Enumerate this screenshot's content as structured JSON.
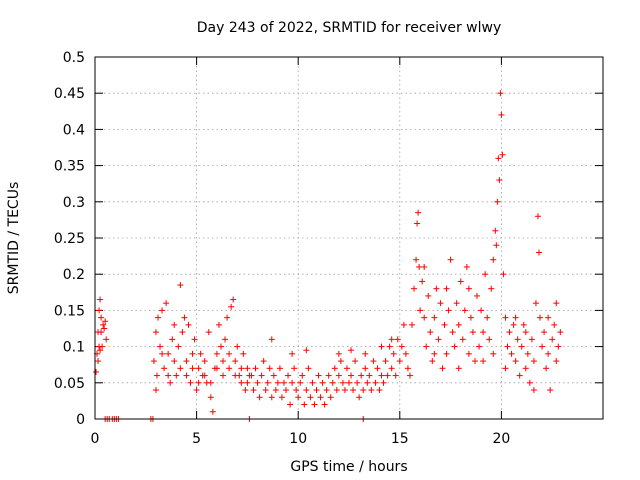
{
  "chart_data": {
    "type": "scatter",
    "title": "Day 243 of 2022, SRMTID for receiver wlwy",
    "xlabel": "GPS time / hours",
    "ylabel": "SRMTID / TECUs",
    "xlim": [
      0,
      25
    ],
    "ylim": [
      0,
      0.5
    ],
    "xticks": [
      0,
      5,
      10,
      15,
      20
    ],
    "yticks": [
      0,
      0.05,
      0.1,
      0.15,
      0.2,
      0.25,
      0.3,
      0.35,
      0.4,
      0.45,
      0.5
    ],
    "ytick_labels": [
      "0",
      "0.05",
      "0.1",
      "0.15",
      "0.2",
      "0.25",
      "0.3",
      "0.35",
      "0.4",
      "0.45",
      "0.5"
    ],
    "grid": true,
    "marker": "+",
    "color": "#ff0000",
    "series": [
      {
        "name": "SRMTID",
        "points": [
          [
            0.05,
            0.065
          ],
          [
            0.1,
            0.09
          ],
          [
            0.15,
            0.12
          ],
          [
            0.2,
            0.15
          ],
          [
            0.25,
            0.165
          ],
          [
            0.3,
            0.14
          ],
          [
            0.35,
            0.1
          ],
          [
            0.4,
            0.13
          ],
          [
            0.45,
            0.125
          ],
          [
            0.5,
            0.135
          ],
          [
            0.55,
            0.11
          ],
          [
            0.15,
            0.08
          ],
          [
            0.2,
            0.1
          ],
          [
            0.25,
            0.095
          ],
          [
            0.3,
            0.12
          ],
          [
            0.5,
            0.0
          ],
          [
            0.6,
            0.0
          ],
          [
            0.7,
            0.0
          ],
          [
            0.85,
            0.0
          ],
          [
            0.95,
            0.0
          ],
          [
            1.05,
            0.0
          ],
          [
            1.15,
            0.0
          ],
          [
            2.75,
            0.0
          ],
          [
            2.85,
            0.0
          ],
          [
            7.6,
            0.0
          ],
          [
            13.2,
            0.0
          ],
          [
            2.9,
            0.08
          ],
          [
            3.0,
            0.12
          ],
          [
            3.05,
            0.06
          ],
          [
            3.1,
            0.14
          ],
          [
            3.2,
            0.1
          ],
          [
            3.3,
            0.15
          ],
          [
            3.4,
            0.07
          ],
          [
            3.5,
            0.16
          ],
          [
            3.6,
            0.09
          ],
          [
            3.7,
            0.05
          ],
          [
            3.8,
            0.11
          ],
          [
            3.9,
            0.13
          ],
          [
            4.0,
            0.06
          ],
          [
            4.1,
            0.1
          ],
          [
            4.2,
            0.185
          ],
          [
            4.3,
            0.12
          ],
          [
            4.4,
            0.14
          ],
          [
            4.5,
            0.08
          ],
          [
            4.6,
            0.13
          ],
          [
            4.7,
            0.05
          ],
          [
            4.8,
            0.09
          ],
          [
            4.9,
            0.11
          ],
          [
            5.0,
            0.04
          ],
          [
            5.1,
            0.07
          ],
          [
            5.2,
            0.09
          ],
          [
            5.3,
            0.06
          ],
          [
            5.4,
            0.08
          ],
          [
            5.5,
            0.05
          ],
          [
            5.6,
            0.12
          ],
          [
            5.7,
            0.03
          ],
          [
            5.8,
            0.01
          ],
          [
            5.9,
            0.07
          ],
          [
            6.0,
            0.09
          ],
          [
            6.1,
            0.13
          ],
          [
            6.2,
            0.1
          ],
          [
            6.3,
            0.06
          ],
          [
            6.4,
            0.11
          ],
          [
            6.5,
            0.14
          ],
          [
            6.6,
            0.09
          ],
          [
            6.7,
            0.155
          ],
          [
            6.8,
            0.165
          ],
          [
            6.9,
            0.08
          ],
          [
            7.0,
            0.1
          ],
          [
            7.1,
            0.06
          ],
          [
            7.2,
            0.05
          ],
          [
            7.3,
            0.09
          ],
          [
            7.4,
            0.04
          ],
          [
            7.5,
            0.07
          ],
          [
            7.6,
            0.06
          ],
          [
            3.0,
            0.04
          ],
          [
            3.3,
            0.09
          ],
          [
            3.6,
            0.06
          ],
          [
            3.9,
            0.08
          ],
          [
            4.2,
            0.07
          ],
          [
            4.5,
            0.06
          ],
          [
            4.8,
            0.07
          ],
          [
            5.1,
            0.05
          ],
          [
            5.4,
            0.06
          ],
          [
            5.7,
            0.05
          ],
          [
            6.0,
            0.07
          ],
          [
            6.3,
            0.08
          ],
          [
            6.6,
            0.07
          ],
          [
            6.9,
            0.06
          ],
          [
            7.2,
            0.07
          ],
          [
            7.5,
            0.05
          ],
          [
            7.7,
            0.06
          ],
          [
            7.8,
            0.04
          ],
          [
            7.9,
            0.07
          ],
          [
            8.0,
            0.05
          ],
          [
            8.1,
            0.03
          ],
          [
            8.2,
            0.06
          ],
          [
            8.3,
            0.08
          ],
          [
            8.4,
            0.04
          ],
          [
            8.5,
            0.05
          ],
          [
            8.6,
            0.07
          ],
          [
            8.7,
            0.03
          ],
          [
            8.8,
            0.06
          ],
          [
            8.9,
            0.04
          ],
          [
            9.0,
            0.05
          ],
          [
            9.1,
            0.07
          ],
          [
            9.2,
            0.03
          ],
          [
            9.3,
            0.05
          ],
          [
            9.4,
            0.04
          ],
          [
            9.5,
            0.06
          ],
          [
            9.6,
            0.02
          ],
          [
            9.7,
            0.05
          ],
          [
            9.8,
            0.07
          ],
          [
            9.9,
            0.04
          ],
          [
            10.0,
            0.03
          ],
          [
            10.1,
            0.05
          ],
          [
            10.2,
            0.06
          ],
          [
            10.3,
            0.02
          ],
          [
            10.4,
            0.04
          ],
          [
            10.5,
            0.07
          ],
          [
            10.6,
            0.03
          ],
          [
            10.7,
            0.05
          ],
          [
            10.8,
            0.02
          ],
          [
            10.9,
            0.04
          ],
          [
            11.0,
            0.06
          ],
          [
            11.1,
            0.03
          ],
          [
            11.2,
            0.05
          ],
          [
            11.3,
            0.02
          ],
          [
            11.4,
            0.04
          ],
          [
            11.5,
            0.06
          ],
          [
            11.6,
            0.03
          ],
          [
            11.7,
            0.05
          ],
          [
            11.8,
            0.07
          ],
          [
            11.9,
            0.04
          ],
          [
            12.0,
            0.06
          ],
          [
            12.1,
            0.08
          ],
          [
            12.2,
            0.05
          ],
          [
            12.3,
            0.04
          ],
          [
            12.4,
            0.07
          ],
          [
            12.5,
            0.05
          ],
          [
            12.6,
            0.06
          ],
          [
            12.7,
            0.04
          ],
          [
            12.8,
            0.08
          ],
          [
            12.9,
            0.05
          ],
          [
            13.0,
            0.03
          ],
          [
            13.1,
            0.06
          ],
          [
            13.2,
            0.04
          ],
          [
            13.3,
            0.07
          ],
          [
            13.4,
            0.05
          ],
          [
            13.5,
            0.06
          ],
          [
            13.6,
            0.04
          ],
          [
            13.7,
            0.08
          ],
          [
            13.8,
            0.05
          ],
          [
            13.9,
            0.07
          ],
          [
            14.0,
            0.04
          ],
          [
            14.1,
            0.06
          ],
          [
            14.2,
            0.05
          ],
          [
            14.3,
            0.08
          ],
          [
            14.4,
            0.06
          ],
          [
            14.5,
            0.1
          ],
          [
            14.6,
            0.07
          ],
          [
            14.7,
            0.09
          ],
          [
            14.8,
            0.06
          ],
          [
            14.9,
            0.11
          ],
          [
            15.0,
            0.08
          ],
          [
            15.1,
            0.1
          ],
          [
            15.2,
            0.13
          ],
          [
            15.3,
            0.09
          ],
          [
            15.4,
            0.07
          ],
          [
            15.5,
            0.06
          ],
          [
            8.7,
            0.11
          ],
          [
            9.7,
            0.09
          ],
          [
            10.4,
            0.095
          ],
          [
            12.0,
            0.09
          ],
          [
            12.6,
            0.095
          ],
          [
            13.3,
            0.09
          ],
          [
            14.1,
            0.1
          ],
          [
            14.6,
            0.11
          ],
          [
            15.6,
            0.13
          ],
          [
            15.7,
            0.18
          ],
          [
            15.8,
            0.22
          ],
          [
            15.85,
            0.27
          ],
          [
            15.9,
            0.285
          ],
          [
            15.95,
            0.21
          ],
          [
            16.0,
            0.15
          ],
          [
            16.1,
            0.19
          ],
          [
            16.2,
            0.14
          ],
          [
            16.3,
            0.1
          ],
          [
            16.4,
            0.17
          ],
          [
            16.5,
            0.12
          ],
          [
            16.6,
            0.08
          ],
          [
            16.7,
            0.14
          ],
          [
            16.8,
            0.18
          ],
          [
            16.9,
            0.11
          ],
          [
            17.0,
            0.16
          ],
          [
            17.1,
            0.07
          ],
          [
            17.2,
            0.13
          ],
          [
            17.3,
            0.09
          ],
          [
            17.4,
            0.15
          ],
          [
            17.5,
            0.22
          ],
          [
            17.6,
            0.12
          ],
          [
            17.7,
            0.1
          ],
          [
            17.8,
            0.16
          ],
          [
            17.9,
            0.13
          ],
          [
            18.0,
            0.19
          ],
          [
            18.1,
            0.11
          ],
          [
            18.2,
            0.15
          ],
          [
            18.3,
            0.21
          ],
          [
            18.4,
            0.09
          ],
          [
            18.5,
            0.14
          ],
          [
            18.6,
            0.12
          ],
          [
            18.7,
            0.08
          ],
          [
            18.8,
            0.17
          ],
          [
            18.9,
            0.1
          ],
          [
            19.0,
            0.15
          ],
          [
            19.1,
            0.12
          ],
          [
            19.2,
            0.2
          ],
          [
            19.3,
            0.14
          ],
          [
            19.4,
            0.11
          ],
          [
            19.5,
            0.18
          ],
          [
            19.6,
            0.22
          ],
          [
            19.7,
            0.26
          ],
          [
            19.75,
            0.24
          ],
          [
            19.8,
            0.3
          ],
          [
            19.85,
            0.36
          ],
          [
            19.9,
            0.33
          ],
          [
            19.95,
            0.45
          ],
          [
            20.0,
            0.42
          ],
          [
            20.05,
            0.365
          ],
          [
            20.1,
            0.2
          ],
          [
            20.2,
            0.14
          ],
          [
            20.3,
            0.1
          ],
          [
            20.4,
            0.12
          ],
          [
            20.5,
            0.09
          ],
          [
            20.6,
            0.13
          ],
          [
            20.7,
            0.08
          ],
          [
            20.8,
            0.11
          ],
          [
            20.9,
            0.06
          ],
          [
            21.0,
            0.1
          ],
          [
            21.1,
            0.13
          ],
          [
            21.2,
            0.07
          ],
          [
            21.3,
            0.09
          ],
          [
            21.4,
            0.05
          ],
          [
            21.5,
            0.11
          ],
          [
            21.6,
            0.08
          ],
          [
            21.7,
            0.16
          ],
          [
            21.8,
            0.28
          ],
          [
            21.85,
            0.23
          ],
          [
            21.9,
            0.14
          ],
          [
            22.0,
            0.1
          ],
          [
            22.1,
            0.12
          ],
          [
            22.2,
            0.07
          ],
          [
            22.3,
            0.09
          ],
          [
            22.4,
            0.04
          ],
          [
            22.5,
            0.11
          ],
          [
            22.6,
            0.13
          ],
          [
            22.7,
            0.08
          ],
          [
            22.8,
            0.1
          ],
          [
            22.9,
            0.12
          ],
          [
            16.2,
            0.21
          ],
          [
            16.7,
            0.09
          ],
          [
            17.3,
            0.18
          ],
          [
            17.9,
            0.07
          ],
          [
            18.4,
            0.18
          ],
          [
            19.1,
            0.08
          ],
          [
            19.6,
            0.09
          ],
          [
            20.2,
            0.07
          ],
          [
            20.7,
            0.14
          ],
          [
            21.2,
            0.12
          ],
          [
            21.6,
            0.04
          ],
          [
            22.3,
            0.14
          ],
          [
            22.7,
            0.16
          ]
        ]
      }
    ]
  }
}
